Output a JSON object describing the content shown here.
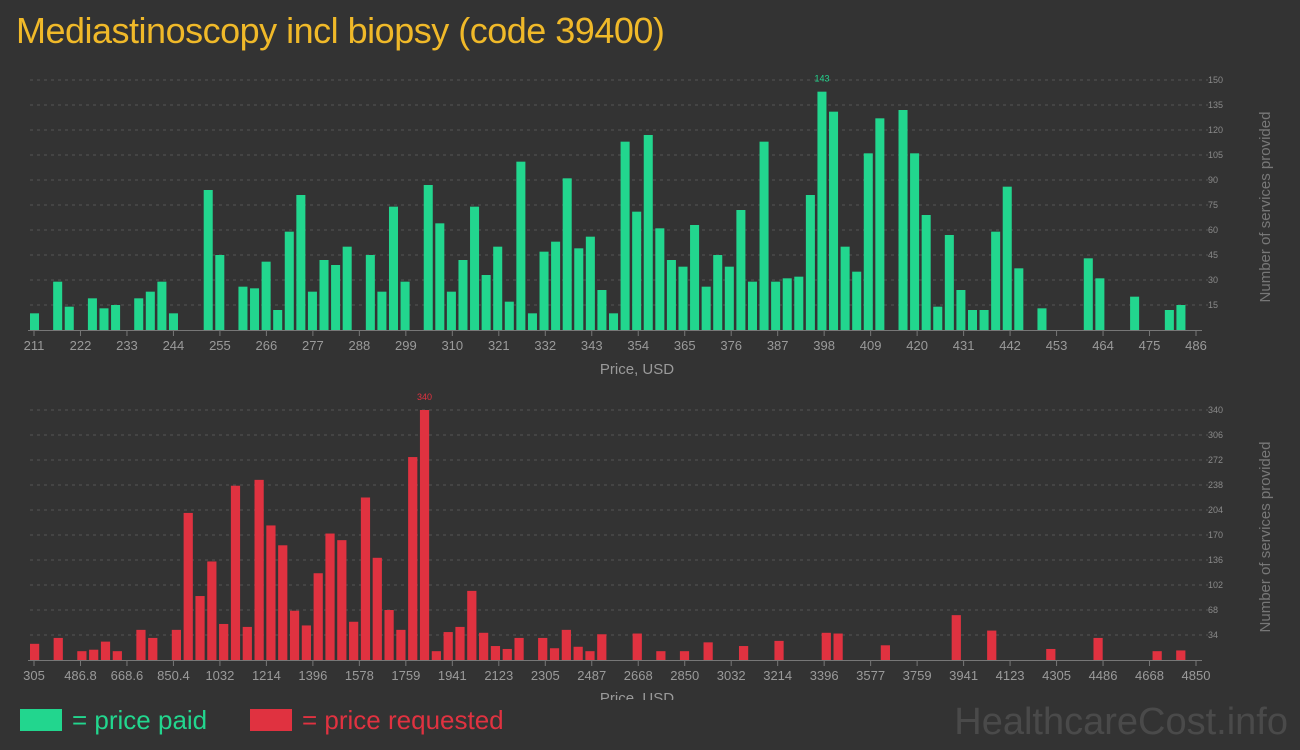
{
  "title": "Mediastinoscopy incl biopsy (code 39400)",
  "legend": {
    "paid_label": "= price paid",
    "requested_label": "= price requested",
    "paid_color": "#22d68e",
    "requested_color": "#e03240"
  },
  "watermark": "HealthcareCost.info",
  "chart_data": [
    {
      "type": "bar",
      "name": "price-paid",
      "xlabel": "Price, USD",
      "ylabel": "Number of services provided",
      "ylim": [
        0,
        150
      ],
      "y_ticks": [
        15,
        30,
        45,
        60,
        75,
        90,
        105,
        120,
        135,
        150
      ],
      "x_ticks": [
        "211",
        "222",
        "233",
        "244",
        "255",
        "266",
        "277",
        "288",
        "299",
        "310",
        "321",
        "332",
        "343",
        "354",
        "365",
        "376",
        "387",
        "398",
        "409",
        "420",
        "431",
        "442",
        "453",
        "464",
        "475",
        "486"
      ],
      "max_label": "143",
      "values": [
        10,
        0,
        29,
        14,
        0,
        19,
        13,
        15,
        0,
        19,
        23,
        29,
        10,
        0,
        0,
        84,
        45,
        0,
        26,
        25,
        41,
        12,
        59,
        81,
        23,
        42,
        39,
        50,
        0,
        45,
        23,
        74,
        29,
        0,
        87,
        64,
        23,
        42,
        74,
        33,
        50,
        17,
        101,
        10,
        47,
        53,
        91,
        49,
        56,
        24,
        10,
        113,
        71,
        117,
        61,
        42,
        38,
        63,
        26,
        45,
        38,
        72,
        29,
        113,
        29,
        31,
        32,
        81,
        143,
        131,
        50,
        35,
        106,
        127,
        0,
        132,
        106,
        69,
        14,
        57,
        24,
        12,
        12,
        59,
        86,
        37,
        0,
        13,
        0,
        0,
        0,
        43,
        31,
        0,
        0,
        20,
        0,
        0,
        12,
        15
      ],
      "color": "#22d68e"
    },
    {
      "type": "bar",
      "name": "price-requested",
      "xlabel": "Price, USD",
      "ylabel": "Number of services provided",
      "ylim": [
        0,
        340
      ],
      "y_ticks": [
        34,
        68,
        102,
        136,
        170,
        204,
        238,
        272,
        306,
        340
      ],
      "x_ticks": [
        "305",
        "486.8",
        "668.6",
        "850.4",
        "1032",
        "1214",
        "1396",
        "1578",
        "1759",
        "1941",
        "2123",
        "2305",
        "2487",
        "2668",
        "2850",
        "3032",
        "3214",
        "3396",
        "3577",
        "3759",
        "3941",
        "4123",
        "4305",
        "4486",
        "4668",
        "4850"
      ],
      "max_label": "340",
      "values": [
        22,
        0,
        30,
        0,
        12,
        14,
        25,
        12,
        0,
        41,
        30,
        0,
        41,
        200,
        87,
        134,
        49,
        237,
        45,
        245,
        183,
        156,
        67,
        47,
        118,
        172,
        163,
        52,
        221,
        139,
        68,
        41,
        276,
        340,
        12,
        38,
        45,
        94,
        37,
        19,
        15,
        30,
        0,
        30,
        16,
        41,
        18,
        12,
        35,
        0,
        0,
        36,
        0,
        12,
        0,
        12,
        0,
        24,
        0,
        0,
        19,
        0,
        0,
        26,
        0,
        0,
        0,
        37,
        36,
        0,
        0,
        0,
        20,
        0,
        0,
        0,
        0,
        0,
        61,
        0,
        0,
        40,
        0,
        0,
        0,
        0,
        15,
        0,
        0,
        0,
        30,
        0,
        0,
        0,
        0,
        12,
        0,
        13
      ],
      "color": "#e03240"
    }
  ]
}
